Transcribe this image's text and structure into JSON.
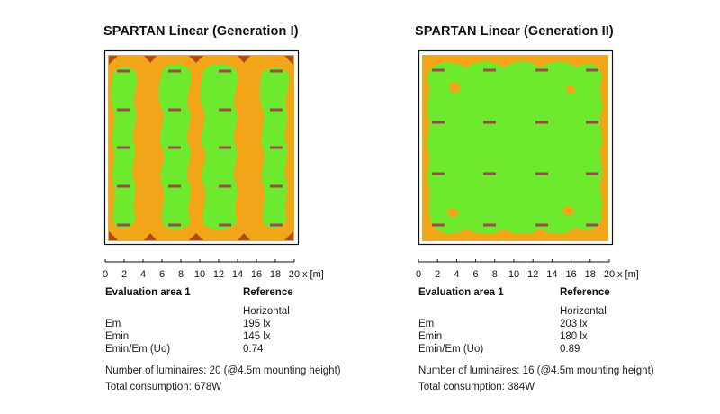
{
  "axis": {
    "ticks": [
      "0",
      "2",
      "4",
      "6",
      "8",
      "10",
      "12",
      "14",
      "16",
      "18",
      "20"
    ],
    "unit": "x [m]"
  },
  "colors": {
    "green": "#6eea2e",
    "orange": "#f2a516",
    "yellow": "#dcb320",
    "dark_orange": "#b04a10",
    "luminaire": "#9a4b4b",
    "border": "#111111"
  },
  "panels": [
    {
      "title": "SPARTAN Linear (Generation I)",
      "evaluation_label": "Evaluation area 1",
      "reference_label": "Reference",
      "reference_value": "Horizontal",
      "metrics": [
        {
          "label": "Em",
          "value": "195 lx"
        },
        {
          "label": "Emin",
          "value": "145 lx"
        },
        {
          "label": "Emin/Em (Uo)",
          "value": "0.74"
        }
      ],
      "luminaires_text": "Number of luminaires: 20 (@4.5m mounting height)",
      "consumption_text": "Total consumption: 678W"
    },
    {
      "title": "SPARTAN Linear (Generation II)",
      "evaluation_label": "Evaluation area 1",
      "reference_label": "Reference",
      "reference_value": "Horizontal",
      "metrics": [
        {
          "label": "Em",
          "value": "203 lx"
        },
        {
          "label": "Emin",
          "value": "180 lx"
        },
        {
          "label": "Emin/Em (Uo)",
          "value": "0.89"
        }
      ],
      "luminaires_text": "Number of luminaires: 16 (@4.5m mounting height)",
      "consumption_text": "Total consumption: 384W"
    }
  ]
}
